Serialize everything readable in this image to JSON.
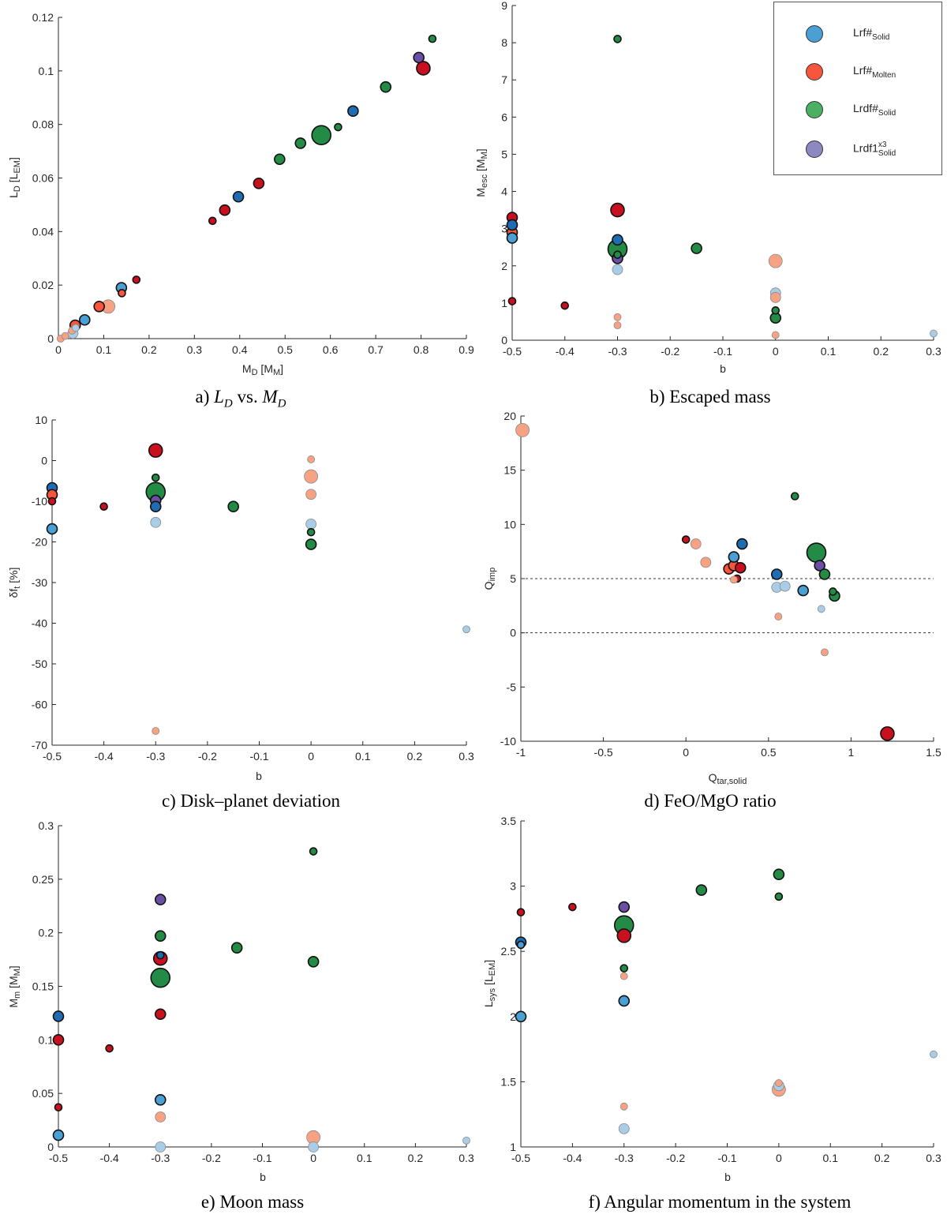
{
  "colors": {
    "dark_red": "#c8101e",
    "red_orange": "#f8553c",
    "salmon": "#f7a283",
    "dark_blue": "#1e6db3",
    "mid_blue": "#4a9fd4",
    "light_blue": "#a9cde6",
    "green": "#238b45",
    "purple": "#6a4fa5",
    "legend_solid": "#4a9fd4",
    "legend_molten": "#f8553e",
    "legend_rdf": "#4bb062",
    "legend_x3": "#8c88c0"
  },
  "legend": [
    {
      "base": "Lrf#",
      "sub": "Solid",
      "sup": "",
      "color_key": "legend_solid"
    },
    {
      "base": "Lrf#",
      "sub": "Molten",
      "sup": "",
      "color_key": "legend_molten"
    },
    {
      "base": "Lrdf#",
      "sub": "Solid",
      "sup": "",
      "color_key": "legend_rdf"
    },
    {
      "base": "Lrdf1",
      "sub": "Solid",
      "sup": "x3",
      "color_key": "legend_x3"
    }
  ],
  "captions": {
    "a": {
      "prefix": "a)",
      "l": "L",
      "lsub": "D",
      "vs": "vs.",
      "m": "M",
      "msub": "D"
    },
    "b": "b) Escaped mass",
    "c": "c) Disk–planet deviation",
    "d": "d) FeO/MgO ratio",
    "e": "e) Moon mass",
    "f": "f) Angular momentum in the system"
  },
  "chart_data": [
    {
      "id": "a",
      "type": "scatter",
      "xlabel": [
        [
          "M",
          ""
        ],
        [
          "D",
          "sub"
        ],
        [
          " [M",
          ""
        ],
        [
          "M",
          "sub"
        ],
        [
          "]",
          ""
        ]
      ],
      "ylabel": [
        [
          "L",
          ""
        ],
        [
          "D",
          "sub"
        ],
        [
          " [L",
          ""
        ],
        [
          "EM",
          "sub"
        ],
        [
          "]",
          ""
        ]
      ],
      "xlim": [
        0,
        0.9
      ],
      "ylim": [
        0,
        0.12
      ],
      "xstep": 0.1,
      "ystep": 0.02,
      "points": [
        [
          0.005,
          0.0,
          "salmon",
          "s"
        ],
        [
          0.015,
          0.001,
          "salmon",
          "s"
        ],
        [
          0.03,
          0.003,
          "salmon",
          "s"
        ],
        [
          0.037,
          0.005,
          "red_orange",
          "m"
        ],
        [
          0.032,
          0.002,
          "light_blue",
          "m"
        ],
        [
          0.038,
          0.004,
          "light_blue",
          "s"
        ],
        [
          0.058,
          0.007,
          "mid_blue",
          "m"
        ],
        [
          0.09,
          0.012,
          "red_orange",
          "m"
        ],
        [
          0.11,
          0.012,
          "salmon",
          "l"
        ],
        [
          0.14,
          0.017,
          "red_orange",
          "s"
        ],
        [
          0.139,
          0.019,
          "mid_blue",
          "m"
        ],
        [
          0.172,
          0.022,
          "dark_red",
          "s"
        ],
        [
          0.34,
          0.044,
          "dark_red",
          "s"
        ],
        [
          0.367,
          0.048,
          "dark_red",
          "m"
        ],
        [
          0.397,
          0.053,
          "dark_blue",
          "m"
        ],
        [
          0.442,
          0.058,
          "dark_red",
          "m"
        ],
        [
          0.488,
          0.067,
          "green",
          "m"
        ],
        [
          0.534,
          0.073,
          "green",
          "m"
        ],
        [
          0.58,
          0.076,
          "green",
          "h"
        ],
        [
          0.617,
          0.079,
          "green",
          "s"
        ],
        [
          0.65,
          0.085,
          "dark_blue",
          "m"
        ],
        [
          0.722,
          0.094,
          "green",
          "m"
        ],
        [
          0.795,
          0.105,
          "purple",
          "m"
        ],
        [
          0.805,
          0.101,
          "dark_red",
          "l"
        ],
        [
          0.825,
          0.112,
          "green",
          "s"
        ]
      ]
    },
    {
      "id": "b",
      "type": "scatter",
      "xlabel": [
        [
          "b",
          ""
        ]
      ],
      "ylabel": [
        [
          "M",
          ""
        ],
        [
          "esc",
          "sub"
        ],
        [
          " [M",
          ""
        ],
        [
          "M",
          "sub"
        ],
        [
          "]",
          ""
        ]
      ],
      "xlim": [
        -0.5,
        0.3
      ],
      "ylim": [
        0,
        9
      ],
      "xstep": 0.1,
      "ystep": 1,
      "points": [
        [
          -0.3,
          8.1,
          "green",
          "s"
        ],
        [
          -0.5,
          3.3,
          "dark_red",
          "m"
        ],
        [
          -0.5,
          2.9,
          "red_orange",
          "m"
        ],
        [
          -0.5,
          3.1,
          "dark_blue",
          "m"
        ],
        [
          -0.5,
          2.75,
          "mid_blue",
          "m"
        ],
        [
          -0.5,
          1.05,
          "dark_red",
          "s"
        ],
        [
          -0.4,
          0.93,
          "dark_red",
          "s"
        ],
        [
          -0.3,
          3.5,
          "dark_red",
          "l"
        ],
        [
          -0.3,
          2.7,
          "dark_blue",
          "m"
        ],
        [
          -0.3,
          2.45,
          "green",
          "h"
        ],
        [
          -0.3,
          2.3,
          "green",
          "s"
        ],
        [
          -0.3,
          2.2,
          "purple",
          "m"
        ],
        [
          -0.3,
          1.9,
          "light_blue",
          "m"
        ],
        [
          -0.3,
          0.62,
          "salmon",
          "s"
        ],
        [
          -0.3,
          0.4,
          "salmon",
          "s"
        ],
        [
          -0.15,
          2.47,
          "green",
          "m"
        ],
        [
          0,
          2.13,
          "salmon",
          "l"
        ],
        [
          0,
          1.27,
          "light_blue",
          "m"
        ],
        [
          0,
          1.15,
          "salmon",
          "m"
        ],
        [
          0,
          0.8,
          "green",
          "s"
        ],
        [
          0,
          0.6,
          "green",
          "m"
        ],
        [
          0,
          0.14,
          "salmon",
          "s"
        ],
        [
          0.3,
          0.18,
          "light_blue",
          "s"
        ]
      ]
    },
    {
      "id": "c",
      "type": "scatter",
      "xlabel": [
        [
          "b",
          ""
        ]
      ],
      "ylabel": [
        [
          "δf",
          ""
        ],
        [
          "t",
          "sub"
        ],
        [
          " [%]",
          ""
        ]
      ],
      "xlim": [
        -0.5,
        0.3
      ],
      "ylim": [
        -70,
        10
      ],
      "xstep": 0.1,
      "ystep": 10,
      "points": [
        [
          -0.3,
          2.5,
          "dark_red",
          "l"
        ],
        [
          -0.3,
          -4.2,
          "green",
          "s"
        ],
        [
          -0.3,
          -7.7,
          "green",
          "h"
        ],
        [
          -0.3,
          -9.8,
          "purple",
          "m"
        ],
        [
          -0.3,
          -11.3,
          "dark_blue",
          "m"
        ],
        [
          -0.3,
          -15.2,
          "light_blue",
          "m"
        ],
        [
          -0.3,
          -66.5,
          "salmon",
          "s"
        ],
        [
          -0.5,
          -6.7,
          "dark_blue",
          "m"
        ],
        [
          -0.5,
          -8.4,
          "red_orange",
          "m"
        ],
        [
          -0.5,
          -10,
          "dark_red",
          "s"
        ],
        [
          -0.5,
          -16.8,
          "mid_blue",
          "m"
        ],
        [
          -0.4,
          -11.3,
          "dark_red",
          "s"
        ],
        [
          -0.15,
          -11.3,
          "green",
          "m"
        ],
        [
          0,
          0.3,
          "salmon",
          "s"
        ],
        [
          0,
          -3.9,
          "salmon",
          "l"
        ],
        [
          0,
          -8.3,
          "salmon",
          "m"
        ],
        [
          0,
          -15.6,
          "light_blue",
          "m"
        ],
        [
          0,
          -17.6,
          "green",
          "s"
        ],
        [
          0,
          -20.6,
          "green",
          "m"
        ],
        [
          0.3,
          -41.5,
          "light_blue",
          "s"
        ]
      ]
    },
    {
      "id": "d",
      "type": "scatter",
      "xlabel": [
        [
          "Q",
          ""
        ],
        [
          "tar,solid",
          "sub"
        ]
      ],
      "ylabel": [
        [
          "Q",
          ""
        ],
        [
          "imp",
          "sub"
        ]
      ],
      "xlim": [
        -1,
        1.5
      ],
      "ylim": [
        -10,
        20
      ],
      "xstep": 0.5,
      "ystep": 5,
      "hlines": [
        5,
        0
      ],
      "points": [
        [
          -0.99,
          18.7,
          "salmon",
          "l"
        ],
        [
          0.66,
          12.6,
          "green",
          "s"
        ],
        [
          0.0,
          8.6,
          "dark_red",
          "s"
        ],
        [
          0.06,
          8.2,
          "salmon",
          "m"
        ],
        [
          0.34,
          8.2,
          "dark_blue",
          "m"
        ],
        [
          0.12,
          6.5,
          "salmon",
          "m"
        ],
        [
          0.79,
          7.4,
          "green",
          "h"
        ],
        [
          0.81,
          6.2,
          "purple",
          "m"
        ],
        [
          0.26,
          5.9,
          "red_orange",
          "m"
        ],
        [
          0.29,
          6.2,
          "red_orange",
          "m"
        ],
        [
          0.33,
          6.0,
          "dark_red",
          "m"
        ],
        [
          0.29,
          7.0,
          "mid_blue",
          "m"
        ],
        [
          0.31,
          5.0,
          "dark_red",
          "s"
        ],
        [
          0.29,
          4.9,
          "salmon",
          "s"
        ],
        [
          0.55,
          5.4,
          "dark_blue",
          "m"
        ],
        [
          0.84,
          5.4,
          "green",
          "m"
        ],
        [
          0.55,
          4.2,
          "light_blue",
          "m"
        ],
        [
          0.6,
          4.3,
          "light_blue",
          "m"
        ],
        [
          0.71,
          3.9,
          "mid_blue",
          "m"
        ],
        [
          0.89,
          3.8,
          "green",
          "s"
        ],
        [
          0.9,
          3.4,
          "green",
          "m"
        ],
        [
          0.82,
          2.2,
          "light_blue",
          "s"
        ],
        [
          0.56,
          1.5,
          "salmon",
          "s"
        ],
        [
          0.84,
          -1.8,
          "salmon",
          "s"
        ],
        [
          1.22,
          -9.3,
          "dark_red",
          "l"
        ]
      ]
    },
    {
      "id": "e",
      "type": "scatter",
      "xlabel": [
        [
          "b",
          ""
        ]
      ],
      "ylabel": [
        [
          "M",
          ""
        ],
        [
          "m",
          "sub"
        ],
        [
          " [M",
          ""
        ],
        [
          "M",
          "sub"
        ],
        [
          "]",
          ""
        ]
      ],
      "xlim": [
        -0.5,
        0.3
      ],
      "ylim": [
        0,
        0.3
      ],
      "xstep": 0.1,
      "ystep": 0.05,
      "points": [
        [
          0,
          0.276,
          "green",
          "s"
        ],
        [
          -0.3,
          0.231,
          "purple",
          "m"
        ],
        [
          -0.3,
          0.197,
          "green",
          "m"
        ],
        [
          -0.15,
          0.186,
          "green",
          "m"
        ],
        [
          -0.3,
          0.176,
          "dark_red",
          "l"
        ],
        [
          -0.3,
          0.179,
          "dark_blue",
          "s"
        ],
        [
          0,
          0.173,
          "green",
          "m"
        ],
        [
          -0.3,
          0.158,
          "green",
          "h"
        ],
        [
          -0.3,
          0.124,
          "dark_red",
          "m"
        ],
        [
          -0.5,
          0.122,
          "dark_blue",
          "m"
        ],
        [
          -0.5,
          0.1,
          "dark_red",
          "m"
        ],
        [
          -0.4,
          0.092,
          "dark_red",
          "s"
        ],
        [
          -0.3,
          0.044,
          "mid_blue",
          "m"
        ],
        [
          -0.5,
          0.037,
          "dark_red",
          "s"
        ],
        [
          -0.3,
          0.028,
          "salmon",
          "m"
        ],
        [
          -0.5,
          0.011,
          "mid_blue",
          "m"
        ],
        [
          0,
          0.009,
          "salmon",
          "l"
        ],
        [
          -0.3,
          0.0,
          "light_blue",
          "m"
        ],
        [
          0,
          0.0,
          "light_blue",
          "m"
        ],
        [
          0.3,
          0.006,
          "light_blue",
          "s"
        ]
      ]
    },
    {
      "id": "f",
      "type": "scatter",
      "xlabel": [
        [
          "b",
          ""
        ]
      ],
      "ylabel": [
        [
          "L",
          ""
        ],
        [
          "sys",
          "sub"
        ],
        [
          " [L",
          ""
        ],
        [
          "EM",
          "sub"
        ],
        [
          "]",
          ""
        ]
      ],
      "xlim": [
        -0.5,
        0.3
      ],
      "ylim": [
        1,
        3.5
      ],
      "xstep": 0.1,
      "ystep": 0.5,
      "points": [
        [
          0,
          3.09,
          "green",
          "m"
        ],
        [
          -0.15,
          2.97,
          "green",
          "m"
        ],
        [
          0,
          2.92,
          "green",
          "s"
        ],
        [
          -0.4,
          2.84,
          "dark_red",
          "s"
        ],
        [
          -0.3,
          2.84,
          "purple",
          "m"
        ],
        [
          -0.5,
          2.8,
          "dark_red",
          "s"
        ],
        [
          -0.3,
          2.62,
          "dark_red",
          "l"
        ],
        [
          -0.3,
          2.7,
          "green",
          "h"
        ],
        [
          -0.5,
          2.57,
          "dark_blue",
          "m"
        ],
        [
          -0.5,
          2.55,
          "mid_blue",
          "s"
        ],
        [
          -0.3,
          2.37,
          "green",
          "s"
        ],
        [
          -0.3,
          2.31,
          "salmon",
          "s"
        ],
        [
          -0.3,
          2.12,
          "mid_blue",
          "m"
        ],
        [
          -0.5,
          2.0,
          "mid_blue",
          "m"
        ],
        [
          0.3,
          1.71,
          "light_blue",
          "s"
        ],
        [
          0,
          1.49,
          "salmon",
          "s"
        ],
        [
          0,
          1.44,
          "salmon",
          "l"
        ],
        [
          0,
          1.47,
          "light_blue",
          "m"
        ],
        [
          -0.3,
          1.31,
          "salmon",
          "s"
        ],
        [
          -0.3,
          1.14,
          "light_blue",
          "m"
        ]
      ]
    }
  ]
}
